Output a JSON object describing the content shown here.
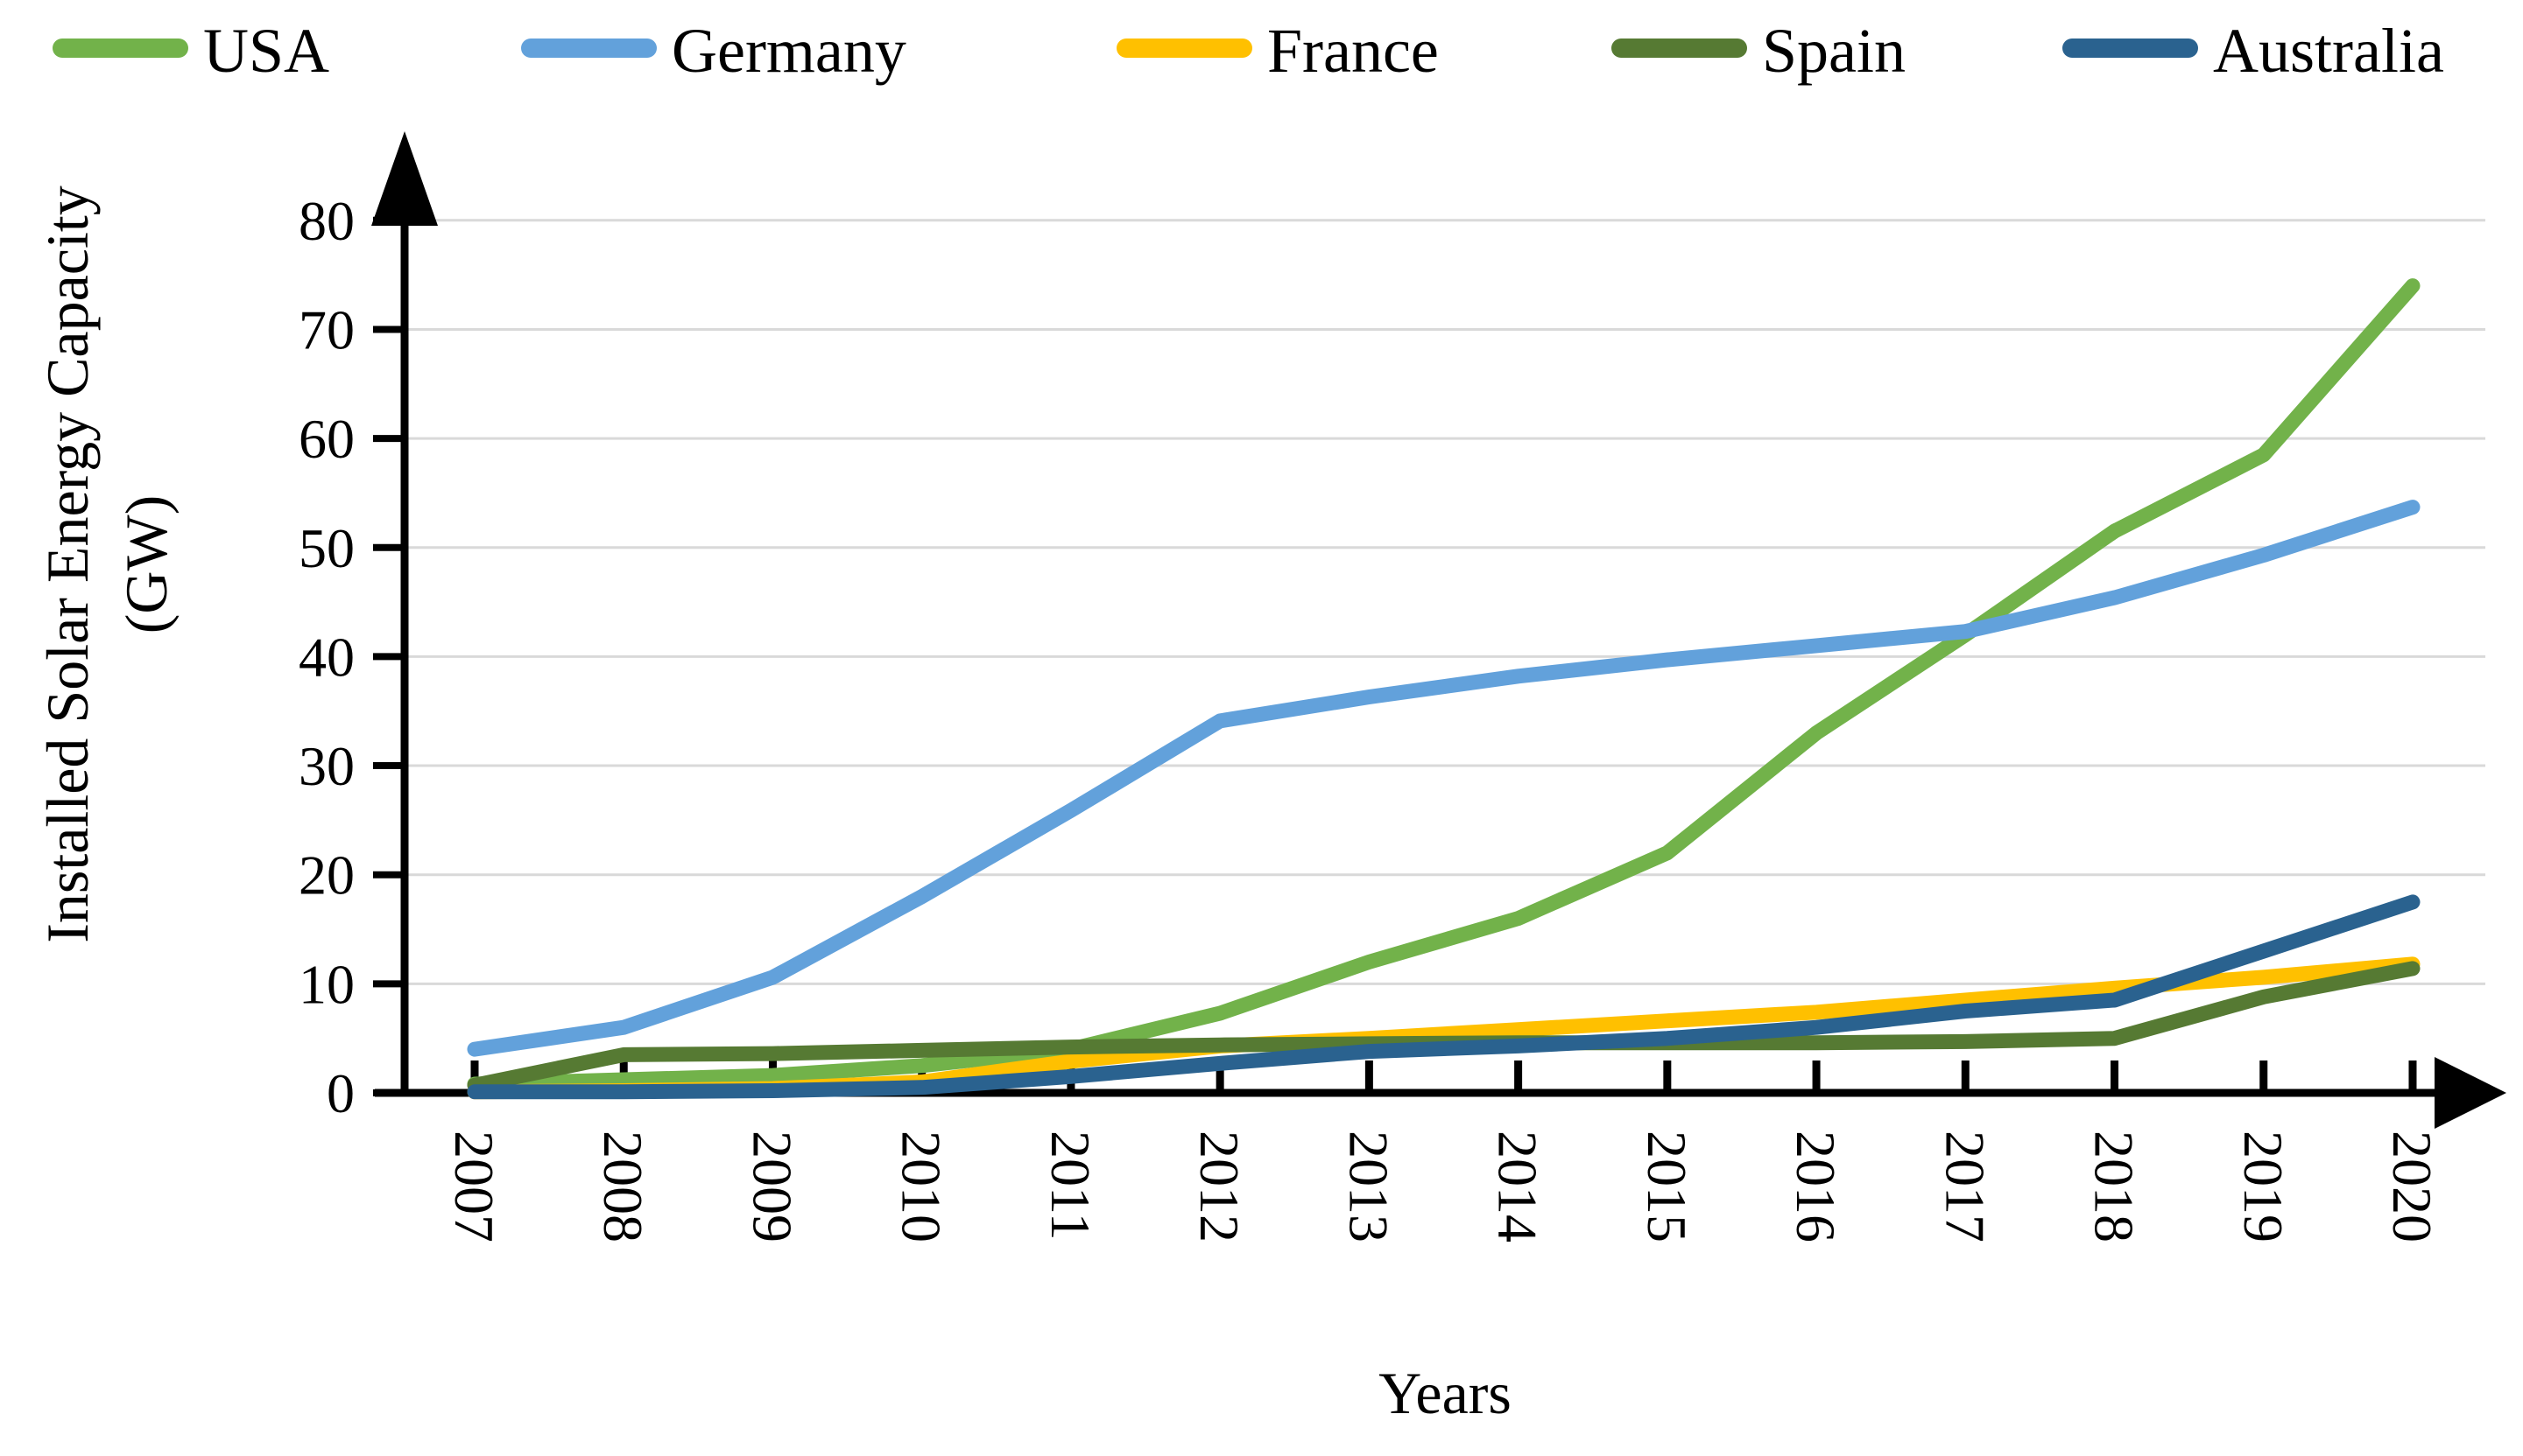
{
  "chart_data": {
    "type": "line",
    "title": "",
    "xlabel": "Years",
    "ylabel": "Installed Solar Energy Capacity (GW)",
    "ylabel_line1": "Installed Solar Energy Capacity",
    "ylabel_line2": "(GW)",
    "x": [
      "2007",
      "2008",
      "2009",
      "2010",
      "2011",
      "2012",
      "2013",
      "2014",
      "2015",
      "2016",
      "2017",
      "2018",
      "2019",
      "2020"
    ],
    "ylim": [
      0,
      80
    ],
    "y_ticks": [
      0,
      10,
      20,
      30,
      40,
      50,
      60,
      70,
      80
    ],
    "grid": "horizontal",
    "grid_color": "#D9D9D9",
    "axis_color": "#000000",
    "legend_position": "top",
    "series": [
      {
        "name": "USA",
        "color": "#72B24A",
        "values": [
          0.8,
          1.2,
          1.6,
          2.5,
          4.0,
          7.3,
          12.0,
          16.0,
          22.0,
          33.0,
          42.0,
          51.5,
          58.5,
          74.0
        ]
      },
      {
        "name": "Germany",
        "color": "#62A1DB",
        "values": [
          4.0,
          6.0,
          10.6,
          18.0,
          25.9,
          34.1,
          36.3,
          38.2,
          39.7,
          41.0,
          42.3,
          45.4,
          49.3,
          53.7
        ]
      },
      {
        "name": "France",
        "color": "#FFC000",
        "values": [
          0.1,
          0.2,
          0.4,
          1.0,
          2.9,
          4.3,
          5.0,
          5.8,
          6.6,
          7.4,
          8.5,
          9.6,
          10.6,
          11.8
        ]
      },
      {
        "name": "Spain",
        "color": "#567A33",
        "values": [
          0.7,
          3.5,
          3.6,
          3.9,
          4.2,
          4.4,
          4.5,
          4.6,
          4.6,
          4.6,
          4.7,
          5.0,
          8.8,
          11.4
        ]
      },
      {
        "name": "Australia",
        "color": "#2A628F",
        "values": [
          0.1,
          0.1,
          0.2,
          0.5,
          1.5,
          2.7,
          3.8,
          4.3,
          5.0,
          6.0,
          7.5,
          8.5,
          13.0,
          17.5
        ]
      }
    ]
  },
  "legend": {
    "items": [
      {
        "label": "USA",
        "color": "#72B24A"
      },
      {
        "label": "Germany",
        "color": "#62A1DB"
      },
      {
        "label": "France",
        "color": "#FFC000"
      },
      {
        "label": "Spain",
        "color": "#567A33"
      },
      {
        "label": "Australia",
        "color": "#2A628F"
      }
    ]
  },
  "axes": {
    "y_title_line1": "Installed Solar Energy Capacity",
    "y_title_line2": "(GW)",
    "x_title": "Years"
  }
}
